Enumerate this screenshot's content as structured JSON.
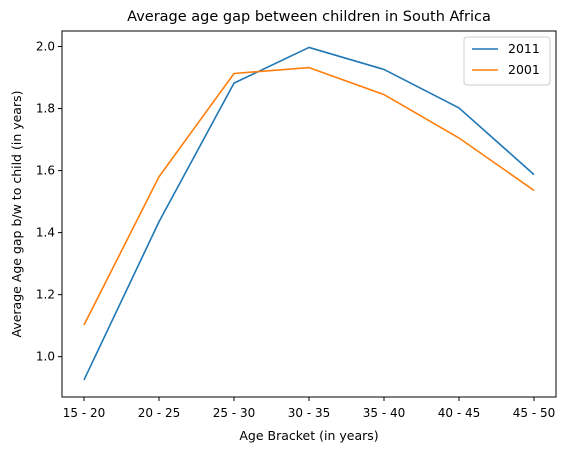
{
  "chart_data": {
    "type": "line",
    "title": "Average age gap between children in South Africa",
    "xlabel": "Age Bracket (in years)",
    "ylabel": "Average Age gap b/w to child (in years)",
    "categories": [
      "15 - 20",
      "20 - 25",
      "25 - 30",
      "30 - 35",
      "35 - 40",
      "40 - 45",
      "45 - 50"
    ],
    "series": [
      {
        "name": "2011",
        "color": "#1f77b4",
        "values": [
          0.925,
          1.435,
          1.882,
          1.997,
          1.926,
          1.802,
          1.587
        ]
      },
      {
        "name": "2001",
        "color": "#ff7f0e",
        "values": [
          1.102,
          1.58,
          1.913,
          1.932,
          1.845,
          1.705,
          1.536
        ]
      }
    ],
    "ylim": [
      0.87,
      2.05
    ],
    "yticks": [
      1.0,
      1.2,
      1.4,
      1.6,
      1.8,
      2.0
    ],
    "ytick_labels": [
      "1.0",
      "1.2",
      "1.4",
      "1.6",
      "1.8",
      "2.0"
    ],
    "grid": false,
    "legend_position": "top-right"
  }
}
